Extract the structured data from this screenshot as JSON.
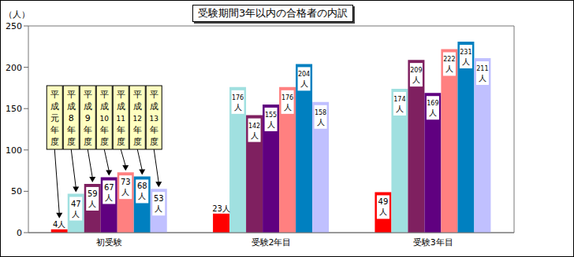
{
  "chart_data": {
    "type": "bar",
    "title": "受験期間3年以内の合格者の内訳",
    "ylabel": "（人）",
    "categories": [
      "初受験",
      "受験2年目",
      "受験3年目"
    ],
    "series": [
      {
        "name": "平成元年度",
        "color": "#ff0000",
        "values": [
          4,
          23,
          49
        ],
        "value_labels": [
          "4人",
          "23人",
          "49人"
        ]
      },
      {
        "name": "平成8年度",
        "color": "#a0e0e0",
        "values": [
          47,
          176,
          174
        ],
        "value_labels": [
          "47人",
          "176人",
          "174人"
        ]
      },
      {
        "name": "平成9年度",
        "color": "#7f2060",
        "values": [
          59,
          142,
          209
        ],
        "value_labels": [
          "59人",
          "142人",
          "209人"
        ]
      },
      {
        "name": "平成10年度",
        "color": "#600080",
        "values": [
          67,
          155,
          169
        ],
        "value_labels": [
          "67人",
          "155人",
          "169人"
        ]
      },
      {
        "name": "平成11年度",
        "color": "#ff8080",
        "values": [
          73,
          176,
          222
        ],
        "value_labels": [
          "73人",
          "176人",
          "222人"
        ]
      },
      {
        "name": "平成12年度",
        "color": "#0080c0",
        "values": [
          68,
          204,
          231
        ],
        "value_labels": [
          "68人",
          "204人",
          "231人"
        ]
      },
      {
        "name": "平成13年度",
        "color": "#c0c0ff",
        "values": [
          53,
          158,
          211
        ],
        "value_labels": [
          "53人",
          "158人",
          "211人"
        ]
      }
    ],
    "ylim": [
      0,
      250
    ],
    "yticks": [
      0,
      50,
      100,
      150,
      200,
      250
    ],
    "grid": true,
    "data_labels": true
  }
}
